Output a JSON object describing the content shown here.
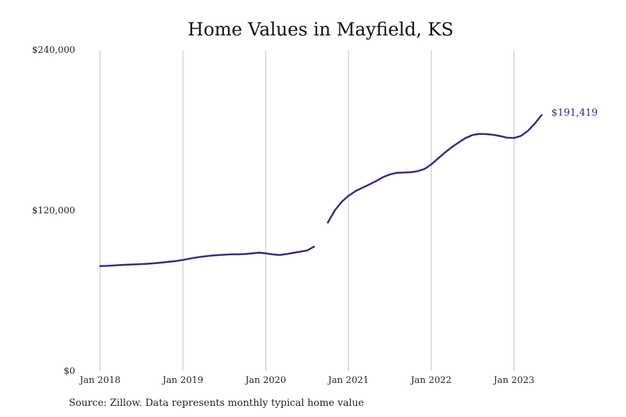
{
  "chart_data": {
    "type": "line",
    "title": "Home Values in Mayfield, KS",
    "xlabel": "",
    "ylabel": "",
    "ylim": [
      0,
      240000
    ],
    "y_ticks": [
      "$0",
      "$120,000",
      "$240,000"
    ],
    "x_ticks": [
      "Jan 2018",
      "Jan 2019",
      "Jan 2020",
      "Jan 2021",
      "Jan 2022",
      "Jan 2023"
    ],
    "grid": "vertical",
    "legend": "none",
    "end_label": "$191,419",
    "source": "Source: Zillow. Data represents monthly typical home value",
    "colors": {
      "line": "#2e2c85",
      "grid": "#bdbdbd"
    },
    "series": [
      {
        "segments": [
          [
            {
              "x": "2018-01",
              "y": 78500
            },
            {
              "x": "2018-02",
              "y": 78700
            },
            {
              "x": "2018-03",
              "y": 79000
            },
            {
              "x": "2018-04",
              "y": 79300
            },
            {
              "x": "2018-05",
              "y": 79600
            },
            {
              "x": "2018-06",
              "y": 79800
            },
            {
              "x": "2018-07",
              "y": 80000
            },
            {
              "x": "2018-08",
              "y": 80300
            },
            {
              "x": "2018-09",
              "y": 80700
            },
            {
              "x": "2018-10",
              "y": 81200
            },
            {
              "x": "2018-11",
              "y": 81700
            },
            {
              "x": "2018-12",
              "y": 82300
            },
            {
              "x": "2019-01",
              "y": 83100
            },
            {
              "x": "2019-02",
              "y": 84100
            },
            {
              "x": "2019-03",
              "y": 85000
            },
            {
              "x": "2019-04",
              "y": 85700
            },
            {
              "x": "2019-05",
              "y": 86300
            },
            {
              "x": "2019-06",
              "y": 86700
            },
            {
              "x": "2019-07",
              "y": 87000
            },
            {
              "x": "2019-08",
              "y": 87300
            },
            {
              "x": "2019-09",
              "y": 87300
            },
            {
              "x": "2019-10",
              "y": 87500
            },
            {
              "x": "2019-11",
              "y": 88000
            },
            {
              "x": "2019-12",
              "y": 88500
            },
            {
              "x": "2020-01",
              "y": 88000
            },
            {
              "x": "2020-02",
              "y": 87300
            },
            {
              "x": "2020-03",
              "y": 86800
            },
            {
              "x": "2020-04",
              "y": 87500
            },
            {
              "x": "2020-05",
              "y": 88400
            },
            {
              "x": "2020-06",
              "y": 89300
            },
            {
              "x": "2020-07",
              "y": 90200
            },
            {
              "x": "2020-08",
              "y": 93000
            }
          ],
          [
            {
              "x": "2020-10",
              "y": 111000
            },
            {
              "x": "2020-11",
              "y": 120000
            },
            {
              "x": "2020-12",
              "y": 126500
            },
            {
              "x": "2021-01",
              "y": 131000
            },
            {
              "x": "2021-02",
              "y": 134500
            },
            {
              "x": "2021-03",
              "y": 137000
            },
            {
              "x": "2021-04",
              "y": 139500
            },
            {
              "x": "2021-05",
              "y": 142000
            },
            {
              "x": "2021-06",
              "y": 145000
            },
            {
              "x": "2021-07",
              "y": 147000
            },
            {
              "x": "2021-08",
              "y": 148200
            },
            {
              "x": "2021-09",
              "y": 148400
            },
            {
              "x": "2021-10",
              "y": 148700
            },
            {
              "x": "2021-11",
              "y": 149400
            },
            {
              "x": "2021-12",
              "y": 151000
            },
            {
              "x": "2022-01",
              "y": 154500
            },
            {
              "x": "2022-02",
              "y": 159000
            },
            {
              "x": "2022-03",
              "y": 163500
            },
            {
              "x": "2022-04",
              "y": 167500
            },
            {
              "x": "2022-05",
              "y": 171000
            },
            {
              "x": "2022-06",
              "y": 174300
            },
            {
              "x": "2022-07",
              "y": 176500
            },
            {
              "x": "2022-08",
              "y": 177300
            },
            {
              "x": "2022-09",
              "y": 177200
            },
            {
              "x": "2022-10",
              "y": 176600
            },
            {
              "x": "2022-11",
              "y": 175700
            },
            {
              "x": "2022-12",
              "y": 174500
            },
            {
              "x": "2023-01",
              "y": 174300
            },
            {
              "x": "2023-02",
              "y": 175800
            },
            {
              "x": "2023-03",
              "y": 179500
            },
            {
              "x": "2023-04",
              "y": 185000
            },
            {
              "x": "2023-05",
              "y": 191419
            }
          ]
        ]
      }
    ]
  }
}
